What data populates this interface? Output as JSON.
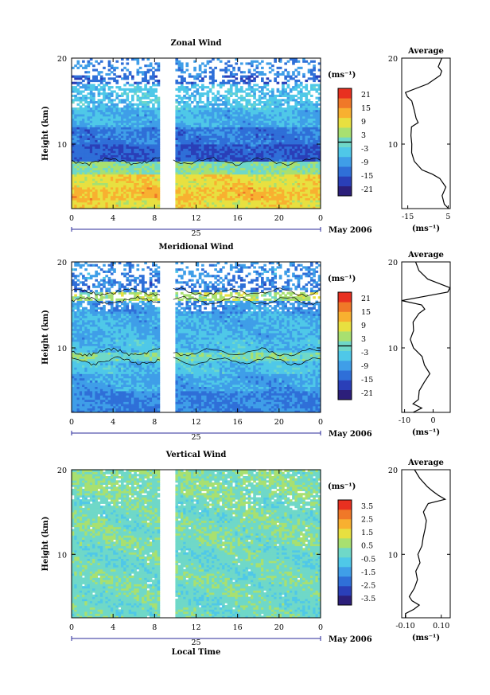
{
  "chart_data": [
    {
      "type": "heatmap",
      "title": "Zonal Wind",
      "ylabel": "Height (km)",
      "ylim": [
        2.5,
        20
      ],
      "ytick_labels": [
        "10",
        "20"
      ],
      "xlim": [
        0,
        24
      ],
      "xtick_labels": [
        "0",
        "4",
        "8",
        "12",
        "16",
        "20",
        "0"
      ],
      "day_label": "25",
      "date_label": "May 2006",
      "colorbar": {
        "unit": "(ms⁻¹)",
        "range": [
          -24,
          24
        ],
        "tick_labels": [
          "21",
          "15",
          "9",
          "3",
          "-3",
          "-9",
          "-15",
          "-21"
        ],
        "colors": [
          "#2c1f7a",
          "#2a3fb8",
          "#2f6fd8",
          "#3f9ee8",
          "#4fc8e8",
          "#6fd8c8",
          "#a8e070",
          "#e8e040",
          "#f8b030",
          "#f07828",
          "#e83020"
        ],
        "zero_line": 0
      },
      "data_gap_hours": [
        8.5,
        9.8
      ],
      "contour_levels": [
        0
      ],
      "bands": [
        {
          "z0": 2.5,
          "z1": 3.5,
          "value": 9
        },
        {
          "z0": 3.5,
          "z1": 5,
          "value": 12
        },
        {
          "z0": 5,
          "z1": 6.5,
          "value": 9
        },
        {
          "z0": 6.5,
          "z1": 8,
          "value": 2
        },
        {
          "z0": 8,
          "z1": 10,
          "value": -15
        },
        {
          "z0": 10,
          "z1": 12,
          "value": -12
        },
        {
          "z0": 12,
          "z1": 14,
          "value": -7
        },
        {
          "z0": 14,
          "z1": 17,
          "value": -5
        },
        {
          "z0": 17,
          "z1": 18,
          "value": -14
        },
        {
          "z0": 18,
          "z1": 20,
          "value": -11
        }
      ],
      "profile": {
        "title": "Average",
        "xlim": [
          -18,
          6
        ],
        "xtick_labels": [
          "-15",
          "5"
        ],
        "xtick_values": [
          -15,
          5
        ],
        "xlabel": "(ms⁻¹)",
        "ytick_labels": [
          "10",
          "20"
        ],
        "heights": [
          2.5,
          3,
          4,
          5,
          6,
          6.5,
          7,
          8,
          9,
          10,
          11,
          12,
          12.5,
          13,
          14,
          15,
          15.5,
          16,
          17,
          18,
          18.5,
          19,
          20
        ],
        "values": [
          5,
          3,
          2,
          4,
          1,
          -3,
          -8,
          -12,
          -13,
          -13,
          -13.5,
          -13,
          -10,
          -11,
          -12,
          -13,
          -15,
          -16,
          -5,
          1,
          2,
          0,
          2
        ]
      }
    },
    {
      "type": "heatmap",
      "title": "Meridional Wind",
      "ylabel": "Height (km)",
      "ylim": [
        2.5,
        20
      ],
      "ytick_labels": [
        "10",
        "20"
      ],
      "xlim": [
        0,
        24
      ],
      "xtick_labels": [
        "0",
        "4",
        "8",
        "12",
        "16",
        "20",
        "0"
      ],
      "day_label": "25",
      "date_label": "May 2006",
      "colorbar": {
        "unit": "(ms⁻¹)",
        "range": [
          -24,
          24
        ],
        "tick_labels": [
          "21",
          "15",
          "9",
          "3",
          "-3",
          "-9",
          "-15",
          "-21"
        ],
        "colors": [
          "#2c1f7a",
          "#2a3fb8",
          "#2f6fd8",
          "#3f9ee8",
          "#4fc8e8",
          "#6fd8c8",
          "#a8e070",
          "#e8e040",
          "#f8b030",
          "#f07828",
          "#e83020"
        ],
        "zero_line": 0
      },
      "data_gap_hours": [
        8.5,
        9.8
      ],
      "contour_levels": [
        0
      ],
      "bands": [
        {
          "z0": 2.5,
          "z1": 5,
          "value": -11
        },
        {
          "z0": 5,
          "z1": 7,
          "value": -8
        },
        {
          "z0": 7,
          "z1": 8.5,
          "value": -5
        },
        {
          "z0": 8.5,
          "z1": 9.5,
          "value": 1
        },
        {
          "z0": 9.5,
          "z1": 11,
          "value": -5
        },
        {
          "z0": 11,
          "z1": 14,
          "value": -7
        },
        {
          "z0": 14,
          "z1": 15.5,
          "value": -9
        },
        {
          "z0": 15.5,
          "z1": 16.5,
          "value": 5
        },
        {
          "z0": 16.5,
          "z1": 18,
          "value": -12
        },
        {
          "z0": 18,
          "z1": 20,
          "value": -10
        }
      ],
      "profile": {
        "title": "Average",
        "xlim": [
          -11,
          6
        ],
        "xtick_labels": [
          "-10",
          "0"
        ],
        "xtick_values": [
          -10,
          0
        ],
        "xlabel": "(ms⁻¹)",
        "ytick_labels": [
          "10",
          "20"
        ],
        "heights": [
          2.5,
          3,
          3.5,
          4,
          5,
          6,
          7,
          8,
          9,
          10,
          11,
          12,
          13,
          14,
          14.5,
          15,
          15.5,
          16,
          16.5,
          17,
          18,
          19,
          20
        ],
        "values": [
          -7,
          -4,
          -7,
          -5,
          -5,
          -3,
          -1,
          -3,
          -4,
          -7,
          -8,
          -7,
          -7,
          -5,
          -3,
          -4,
          -11,
          -3,
          5,
          6,
          -2,
          -5,
          -6
        ]
      }
    },
    {
      "type": "heatmap",
      "title": "Vertical Wind",
      "ylabel": "Height (km)",
      "ylim": [
        2.5,
        20
      ],
      "ytick_labels": [
        "10",
        "20"
      ],
      "xlim": [
        0,
        24
      ],
      "xtick_labels": [
        "0",
        "4",
        "8",
        "12",
        "16",
        "20",
        "0"
      ],
      "xlabel": "Local Time",
      "day_label": "25",
      "date_label": "May 2006",
      "colorbar": {
        "unit": "(ms⁻¹)",
        "range": [
          -4,
          4
        ],
        "tick_labels": [
          "3.5",
          "2.5",
          "1.5",
          "0.5",
          "-0.5",
          "-1.5",
          "-2.5",
          "-3.5"
        ],
        "colors": [
          "#2c1f7a",
          "#2a3fb8",
          "#2f6fd8",
          "#3f9ee8",
          "#4fc8e8",
          "#6fd8c8",
          "#a8e070",
          "#e8e040",
          "#f8b030",
          "#f07828",
          "#e83020"
        ]
      },
      "data_gap_hours": [
        8.5,
        9.8
      ],
      "bands": [
        {
          "z0": 2.5,
          "z1": 5,
          "value": 0
        },
        {
          "z0": 5,
          "z1": 8,
          "value": 0.1
        },
        {
          "z0": 8,
          "z1": 11,
          "value": 0
        },
        {
          "z0": 11,
          "z1": 14,
          "value": 0.2
        },
        {
          "z0": 14,
          "z1": 17,
          "value": 0.1
        },
        {
          "z0": 17,
          "z1": 20,
          "value": 0.3
        }
      ],
      "profile": {
        "title": "Average",
        "xlim": [
          -0.12,
          0.15
        ],
        "xtick_labels": [
          "-0.10",
          "0.10"
        ],
        "xtick_values": [
          -0.1,
          0.1
        ],
        "xlabel": "(ms⁻¹)",
        "ytick_labels": [
          "10",
          "20"
        ],
        "heights": [
          2.5,
          3,
          3.5,
          4,
          4.5,
          5,
          6,
          7,
          8,
          9,
          10,
          11,
          12,
          13,
          14,
          15,
          16,
          16.5,
          17,
          17.5,
          18,
          19,
          20
        ],
        "values": [
          -0.1,
          -0.1,
          -0.05,
          -0.02,
          -0.06,
          -0.08,
          -0.05,
          -0.03,
          -0.04,
          -0.02,
          -0.03,
          -0.01,
          0,
          0.01,
          0.02,
          0,
          0.03,
          0.12,
          0.08,
          0.05,
          0.02,
          -0.02,
          -0.05
        ]
      }
    }
  ]
}
